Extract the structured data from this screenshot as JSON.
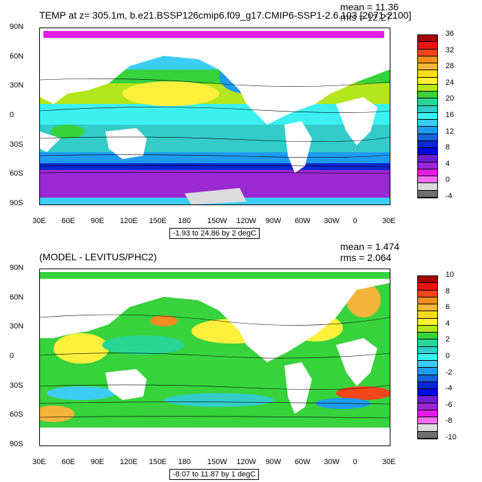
{
  "lon_ticks": [
    "30E",
    "60E",
    "90E",
    "120E",
    "150E",
    "180",
    "150W",
    "120W",
    "90W",
    "60W",
    "30W",
    "0",
    "30E"
  ],
  "lat_ticks": [
    "90N",
    "60N",
    "30N",
    "0",
    "30S",
    "60S",
    "90S"
  ],
  "top": {
    "title": "TEMP at z= 305.1m, b.e21.BSSP126cmip6.f09_g17.CMIP6-SSP1-2.6.103 [2071-2100]",
    "mean": "mean = 11.36",
    "rms": "rms = 12.27",
    "range": "-1.93 to 24.86 by 2 degC",
    "colorbar_labels": [
      "36",
      "32",
      "28",
      "24",
      "20",
      "16",
      "12",
      "8",
      "4",
      "0",
      "-4"
    ],
    "colors": [
      "#a50000",
      "#e8150f",
      "#f5461a",
      "#f58c21",
      "#f5b43c",
      "#fadc1e",
      "#fff03c",
      "#b4e61e",
      "#37d23c",
      "#28d796",
      "#33ccc9",
      "#3cf0f0",
      "#3ccdf5",
      "#1e9bf0",
      "#1464dc",
      "#0a28d2",
      "#000adc",
      "#6e1ed2",
      "#9b28d2",
      "#e11ee1",
      "#f56ef5",
      "#dcdcdc",
      "#6e6e6e"
    ]
  },
  "bottom": {
    "title": "(MODEL - LEVITUS/PHC2)",
    "mean": "mean = 1.474",
    "rms": "rms = 2.064",
    "range": "-8.07 to 11.87 by 1 degC",
    "colorbar_labels": [
      "10",
      "8",
      "6",
      "4",
      "2",
      "0",
      "-2",
      "-4",
      "-6",
      "-8",
      "-10"
    ],
    "colors": [
      "#a50000",
      "#e8150f",
      "#f5461a",
      "#f58c21",
      "#f5b43c",
      "#fadc1e",
      "#fff03c",
      "#b4e61e",
      "#37d23c",
      "#28d796",
      "#33ccc9",
      "#3cf0f0",
      "#3ccdf5",
      "#1e9bf0",
      "#1464dc",
      "#0a28d2",
      "#000adc",
      "#6e1ed2",
      "#9b28d2",
      "#e11ee1",
      "#f56ef5",
      "#dcdcdc",
      "#6e6e6e"
    ]
  }
}
